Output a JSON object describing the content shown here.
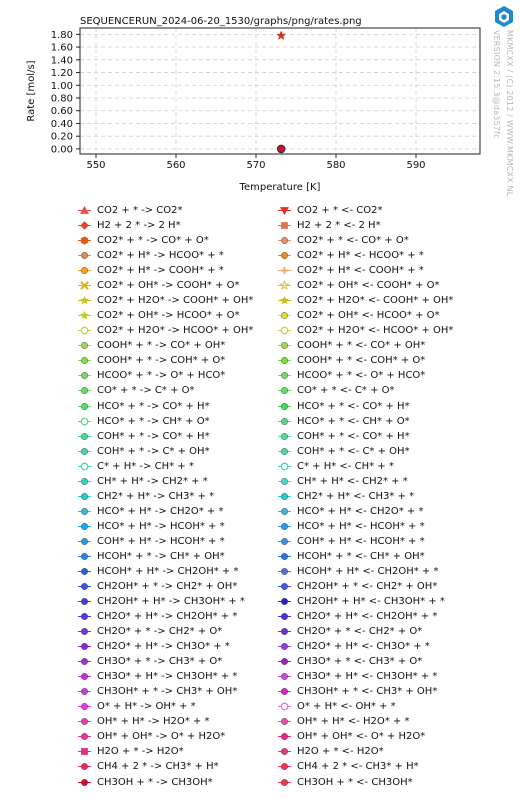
{
  "chart_data": {
    "type": "scatter",
    "title": "SEQUENCERUN_2024-06-20_1530/graphs/png/rates.png",
    "xlabel": "Temperature [K]",
    "ylabel": "Rate [mol/s]",
    "xlim": [
      548,
      598
    ],
    "ylim": [
      -0.08,
      1.9
    ],
    "xticks": [
      "550",
      "560",
      "570",
      "580",
      "590"
    ],
    "xtick_values": [
      550,
      560,
      570,
      580,
      590
    ],
    "yticks": [
      "0.00",
      "0.20",
      "0.40",
      "0.60",
      "0.80",
      "1.00",
      "1.20",
      "1.40",
      "1.60",
      "1.80"
    ],
    "ytick_values": [
      0,
      0.2,
      0.4,
      0.6,
      0.8,
      1.0,
      1.2,
      1.4,
      1.6,
      1.8
    ],
    "grid": true,
    "points": [
      {
        "x": 573.15,
        "y": 1.78,
        "marker": "star",
        "color": "#d62f1f"
      },
      {
        "x": 573.15,
        "y": 0.0,
        "marker": "circle",
        "color": "#c8102e"
      }
    ],
    "legend_left": [
      {
        "label": "CO2 + * -> CO2*",
        "marker": "triangle-up",
        "color": "#e8504a"
      },
      {
        "label": "H2 + 2 * -> 2 H*",
        "marker": "diamond",
        "color": "#e0462c"
      },
      {
        "label": "CO2* + * -> CO* + O*",
        "marker": "hexagon",
        "color": "#e05a18"
      },
      {
        "label": "CO2* + H* -> HCOO* + *",
        "marker": "circle",
        "color": "#e08a50"
      },
      {
        "label": "CO2* + H* -> COOH* + *",
        "marker": "circle",
        "color": "#f0a030"
      },
      {
        "label": "CO2* + OH* -> COOH* + O*",
        "marker": "x",
        "color": "#d8b020"
      },
      {
        "label": "CO2* + H2O* -> COOH* + OH*",
        "marker": "star",
        "color": "#c8c018"
      },
      {
        "label": "CO2* + OH* -> HCOO* + O*",
        "marker": "star",
        "color": "#b8d018"
      },
      {
        "label": "CO2* + H2O* -> HCOO* + OH*",
        "marker": "circle-open",
        "color": "#b0d838"
      },
      {
        "label": "COOH* + * -> CO* + OH*",
        "marker": "circle",
        "color": "#98d850"
      },
      {
        "label": "COOH* + * -> COH* + O*",
        "marker": "circle",
        "color": "#88d858"
      },
      {
        "label": "HCOO* + * -> O* + HCO*",
        "marker": "circle",
        "color": "#78d860"
      },
      {
        "label": "CO* + * -> C* + O*",
        "marker": "circle",
        "color": "#68d868"
      },
      {
        "label": "HCO* + * -> CO* + H*",
        "marker": "circle",
        "color": "#58d870"
      },
      {
        "label": "HCO* + * -> CH* + O*",
        "marker": "circle-open",
        "color": "#50d880"
      },
      {
        "label": "COH* + * -> CO* + H*",
        "marker": "circle",
        "color": "#48d890"
      },
      {
        "label": "COH* + * -> C* + OH*",
        "marker": "circle",
        "color": "#40d8a0"
      },
      {
        "label": "C* + H* -> CH* + *",
        "marker": "circle-open",
        "color": "#40d8b0"
      },
      {
        "label": "CH* + H* -> CH2* + *",
        "marker": "circle",
        "color": "#38d0c0"
      },
      {
        "label": "CH2* + H* -> CH3* + *",
        "marker": "circle",
        "color": "#30c8c8"
      },
      {
        "label": "HCO* + H* -> CH2O* + *",
        "marker": "circle",
        "color": "#30c0d0"
      },
      {
        "label": "HCO* + H* -> HCOH* + *",
        "marker": "circle",
        "color": "#20a8e0"
      },
      {
        "label": "COH* + H* -> HCOH* + *",
        "marker": "circle",
        "color": "#3098e0"
      },
      {
        "label": "HCOH* + * -> CH* + OH*",
        "marker": "circle",
        "color": "#3080e0"
      },
      {
        "label": "HCOH* + H* -> CH2OH* + *",
        "marker": "circle",
        "color": "#2860e0"
      },
      {
        "label": "CH2OH* + * -> CH2* + OH*",
        "marker": "circle",
        "color": "#3858d8"
      },
      {
        "label": "CH2OH* + H* -> CH3OH* + *",
        "marker": "circle",
        "color": "#4040d8"
      },
      {
        "label": "CH2O* + H* -> CH2OH* + *",
        "marker": "circle",
        "color": "#5838d8"
      },
      {
        "label": "CH2O* + * -> CH2* + O*",
        "marker": "circle",
        "color": "#7038d8"
      },
      {
        "label": "CH2O* + H* -> CH3O* + *",
        "marker": "circle",
        "color": "#8828d0"
      },
      {
        "label": "CH3O* + * -> CH3* + O*",
        "marker": "circle",
        "color": "#a030d0"
      },
      {
        "label": "CH3O* + H* -> CH3OH* + *",
        "marker": "circle",
        "color": "#b838c8"
      },
      {
        "label": "CH3OH* + * -> CH3* + OH*",
        "marker": "circle",
        "color": "#c840c8"
      },
      {
        "label": "O* + H* -> OH* + *",
        "marker": "circle",
        "color": "#e040d8"
      },
      {
        "label": "OH* + H* -> H2O* + *",
        "marker": "circle",
        "color": "#e040b0"
      },
      {
        "label": "OH* + OH* -> O* + H2O*",
        "marker": "circle",
        "color": "#e03898"
      },
      {
        "label": "H2O + * -> H2O*",
        "marker": "square",
        "color": "#e03080"
      },
      {
        "label": "CH4 + 2 * -> CH3* + H*",
        "marker": "circle",
        "color": "#e03060"
      },
      {
        "label": "CH3OH + * -> CH3OH*",
        "marker": "circle",
        "color": "#c8102e"
      }
    ],
    "legend_right": [
      {
        "label": "CO2 + * <- CO2*",
        "marker": "triangle-down",
        "color": "#e0302a"
      },
      {
        "label": "H2 + 2 * <- 2 H*",
        "marker": "square",
        "color": "#e07050"
      },
      {
        "label": "CO2* + * <- CO* + O*",
        "marker": "circle",
        "color": "#e09070"
      },
      {
        "label": "CO2* + H* <- HCOO* + *",
        "marker": "circle",
        "color": "#f08818"
      },
      {
        "label": "CO2* + H* <- COOH* + *",
        "marker": "plus",
        "color": "#e8b070"
      },
      {
        "label": "CO2* + OH* <- COOH* + O*",
        "marker": "star-open",
        "color": "#d8c040"
      },
      {
        "label": "CO2* + H2O* <- COOH* + OH*",
        "marker": "star",
        "color": "#c8b818"
      },
      {
        "label": "CO2* + OH* <- HCOO* + O*",
        "marker": "circle",
        "color": "#d8e030"
      },
      {
        "label": "CO2* + H2O* <- HCOO* + OH*",
        "marker": "circle-open",
        "color": "#b8d840"
      },
      {
        "label": "COOH* + * <- CO* + OH*",
        "marker": "circle",
        "color": "#a0d848"
      },
      {
        "label": "COOH* + * <- COH* + O*",
        "marker": "circle",
        "color": "#80d840"
      },
      {
        "label": "HCOO* + * <- O* + HCO*",
        "marker": "circle",
        "color": "#78d868"
      },
      {
        "label": "CO* + * <- C* + O*",
        "marker": "circle",
        "color": "#68d870"
      },
      {
        "label": "HCO* + * <- CO* + H*",
        "marker": "circle",
        "color": "#40d860"
      },
      {
        "label": "HCO* + * <- CH* + O*",
        "marker": "circle",
        "color": "#58d880"
      },
      {
        "label": "COH* + * <- CO* + H*",
        "marker": "circle",
        "color": "#58d898"
      },
      {
        "label": "COH* + * <- C* + OH*",
        "marker": "circle",
        "color": "#48d8a8"
      },
      {
        "label": "C* + H* <- CH* + *",
        "marker": "circle-open",
        "color": "#40d0b8"
      },
      {
        "label": "CH* + H* <- CH2* + *",
        "marker": "circle",
        "color": "#48d8c8"
      },
      {
        "label": "CH2* + H* <- CH3* + *",
        "marker": "circle",
        "color": "#30c8d0"
      },
      {
        "label": "HCO* + H* <- CH2O* + *",
        "marker": "circle",
        "color": "#40b0e0"
      },
      {
        "label": "HCO* + H* <- HCOH* + *",
        "marker": "circle",
        "color": "#3098e8"
      },
      {
        "label": "COH* + H* <- HCOH* + *",
        "marker": "circle",
        "color": "#4090e0"
      },
      {
        "label": "HCOH* + * <- CH* + OH*",
        "marker": "circle",
        "color": "#3070e0"
      },
      {
        "label": "HCOH* + H* <- CH2OH* + *",
        "marker": "circle",
        "color": "#5070d8"
      },
      {
        "label": "CH2OH* + * <- CH2* + OH*",
        "marker": "circle",
        "color": "#4858d8"
      },
      {
        "label": "CH2OH* + H* <- CH3OH* + *",
        "marker": "circle",
        "color": "#2820d0"
      },
      {
        "label": "CH2O* + H* <- CH2OH* + *",
        "marker": "circle",
        "color": "#5030d8"
      },
      {
        "label": "CH2O* + * <- CH2* + O*",
        "marker": "circle",
        "color": "#7030d0"
      },
      {
        "label": "CH2O* + H* <- CH3O* + *",
        "marker": "circle",
        "color": "#9040d8"
      },
      {
        "label": "CH3O* + * <- CH3* + O*",
        "marker": "circle",
        "color": "#a020c8"
      },
      {
        "label": "CH3O* + H* <- CH3OH* + *",
        "marker": "circle",
        "color": "#c050d0"
      },
      {
        "label": "CH3OH* + * <- CH3* + OH*",
        "marker": "circle",
        "color": "#e020d0"
      },
      {
        "label": "O* + H* <- OH* + *",
        "marker": "circle-open",
        "color": "#e070d8"
      },
      {
        "label": "OH* + H* <- H2O* + *",
        "marker": "circle",
        "color": "#e050a8"
      },
      {
        "label": "OH* + OH* <- O* + H2O*",
        "marker": "circle",
        "color": "#e02888"
      },
      {
        "label": "H2O + * <- H2O*",
        "marker": "circle",
        "color": "#e83878"
      },
      {
        "label": "CH4 + 2 * <- CH3* + H*",
        "marker": "circle",
        "color": "#e83858"
      },
      {
        "label": "CH3OH + * <- CH3OH*",
        "marker": "circle",
        "color": "#e04050"
      }
    ]
  },
  "watermark": {
    "line1": "MKMCXX / (C) 2012 / WWW.MKMCXX.NL",
    "line2": "VERSION 2.15.3@da357fc"
  },
  "colors": {
    "grid": "#d0d0d0",
    "frame": "#222222",
    "logo": "#1e88d0"
  }
}
